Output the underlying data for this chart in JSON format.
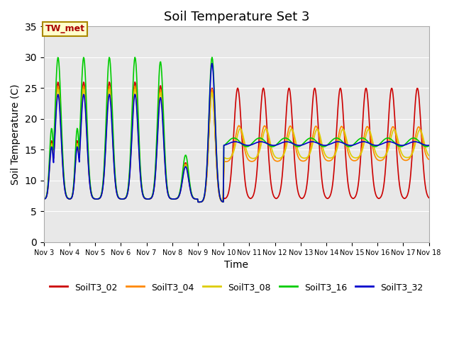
{
  "title": "Soil Temperature Set 3",
  "xlabel": "Time",
  "ylabel": "Soil Temperature (C)",
  "ylim": [
    0,
    35
  ],
  "xlim_days": [
    3,
    18
  ],
  "annotation_text": "TW_met",
  "annotation_color": "#aa0000",
  "annotation_bg": "#ffffcc",
  "annotation_border": "#aa8800",
  "bg_color": "#e8e8e8",
  "fig_color": "#ffffff",
  "xtick_labels": [
    "Nov 3",
    "Nov 4",
    "Nov 5",
    "Nov 6",
    "Nov 7",
    "Nov 8",
    "Nov 9",
    "Nov 10",
    "Nov 11",
    "Nov 12",
    "Nov 13",
    "Nov 14",
    "Nov 15",
    "Nov 16",
    "Nov 17",
    "Nov 18"
  ],
  "series": {
    "SoilT3_02": {
      "color": "#cc0000",
      "lw": 1.2
    },
    "SoilT3_04": {
      "color": "#ff8800",
      "lw": 1.2
    },
    "SoilT3_08": {
      "color": "#ddcc00",
      "lw": 1.2
    },
    "SoilT3_16": {
      "color": "#00cc00",
      "lw": 1.2
    },
    "SoilT3_32": {
      "color": "#0000cc",
      "lw": 1.2
    }
  },
  "legend_order": [
    "SoilT3_02",
    "SoilT3_04",
    "SoilT3_08",
    "SoilT3_16",
    "SoilT3_32"
  ]
}
